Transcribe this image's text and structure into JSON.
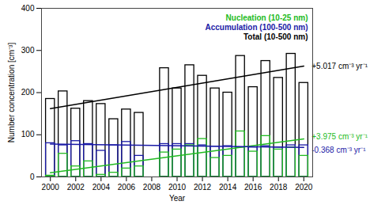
{
  "chart_data": {
    "type": "bar",
    "x": [
      2000,
      2001,
      2002,
      2003,
      2004,
      2005,
      2006,
      2007,
      2009,
      2010,
      2011,
      2012,
      2013,
      2014,
      2015,
      2016,
      2017,
      2018,
      2019,
      2020
    ],
    "xlabel": "Year",
    "ylabel": "Number concentration [cm⁻³]",
    "xlim": [
      1999.3,
      2020.7
    ],
    "xticks": [
      2000,
      2002,
      2004,
      2006,
      2008,
      2010,
      2012,
      2014,
      2016,
      2018,
      2020
    ],
    "ylim": [
      0,
      400
    ],
    "yticks": [
      0,
      100,
      200,
      300,
      400
    ],
    "grid": false,
    "legend": "top-right",
    "series": [
      {
        "name": "Nucleation (10-25 nm)",
        "color": "#22bb22",
        "values": [
          3,
          55,
          25,
          37,
          5,
          10,
          20,
          25,
          58,
          65,
          75,
          90,
          45,
          50,
          108,
          60,
          97,
          65,
          70,
          50
        ]
      },
      {
        "name": "Accumulation (100-500 nm)",
        "color": "#1a1aa6",
        "values": [
          80,
          75,
          85,
          78,
          62,
          75,
          83,
          50,
          78,
          78,
          78,
          75,
          72,
          73,
          70,
          70,
          73,
          70,
          75,
          75
        ]
      },
      {
        "name": "Total (10-500 nm)",
        "color": "#000000",
        "values": [
          185,
          203,
          162,
          180,
          173,
          137,
          160,
          152,
          258,
          210,
          265,
          240,
          210,
          200,
          287,
          213,
          275,
          235,
          292,
          223
        ]
      },
      {
        "name": "+5.017 cm⁻³ yr⁻¹",
        "type": "line",
        "color": "#000000",
        "x": [
          2000,
          2020
        ],
        "values": [
          162,
          263
        ]
      },
      {
        "name": "+3.975 cm⁻³ yr⁻¹",
        "type": "line",
        "color": "#22bb22",
        "x": [
          2000,
          2020
        ],
        "values": [
          10,
          90
        ]
      },
      {
        "name": "-0.368 cm⁻³ yr⁻¹",
        "type": "line",
        "color": "#1a1aa6",
        "x": [
          2000,
          2020
        ],
        "values": [
          78,
          70
        ]
      }
    ]
  }
}
